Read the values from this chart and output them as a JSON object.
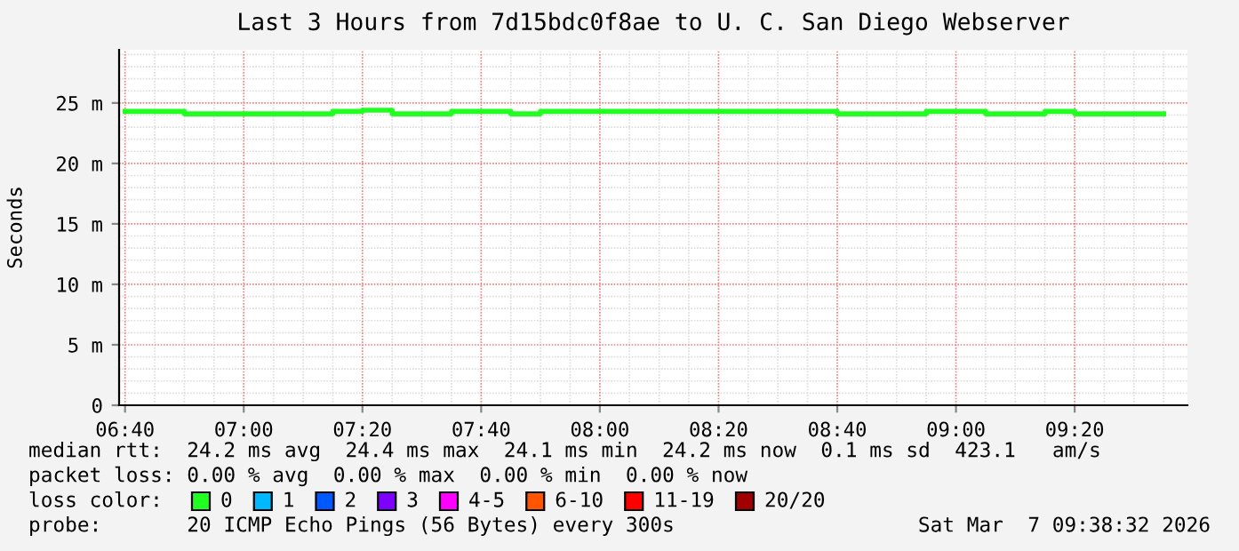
{
  "chart_data": {
    "type": "step",
    "title": "Last 3 Hours from 7d15bdc0f8ae to U. C. San Diego Webserver",
    "ylabel": "Seconds",
    "x": [
      6.6667,
      6.8333,
      7.25,
      7.3333,
      7.4167,
      7.5833,
      7.75,
      7.8333,
      8.6667,
      8.9167,
      9.0833,
      9.25,
      9.3333,
      9.5833
    ],
    "series": [
      {
        "name": "0",
        "color": "#20ff20",
        "values": [
          24.3,
          24.1,
          24.3,
          24.4,
          24.1,
          24.3,
          24.1,
          24.3,
          24.1,
          24.3,
          24.1,
          24.3,
          24.1,
          24.1
        ]
      },
      {
        "name": "1",
        "color": "#00b8ff",
        "values": [
          null,
          null,
          null,
          null,
          null,
          null,
          null,
          null,
          null,
          null,
          null,
          null,
          null,
          null
        ]
      },
      {
        "name": "2",
        "color": "#0059ff",
        "values": [
          null,
          null,
          null,
          null,
          null,
          null,
          null,
          null,
          null,
          null,
          null,
          null,
          null,
          null
        ]
      },
      {
        "name": "3",
        "color": "#7e00ff",
        "values": [
          null,
          null,
          null,
          null,
          null,
          null,
          null,
          null,
          null,
          null,
          null,
          null,
          null,
          null
        ]
      },
      {
        "name": "4-5",
        "color": "#ff00ff",
        "values": [
          null,
          null,
          null,
          null,
          null,
          null,
          null,
          null,
          null,
          null,
          null,
          null,
          null,
          null
        ]
      },
      {
        "name": "6-10",
        "color": "#ff5500",
        "values": [
          null,
          null,
          null,
          null,
          null,
          null,
          null,
          null,
          null,
          null,
          null,
          null,
          null,
          null
        ]
      },
      {
        "name": "11-19",
        "color": "#ff0000",
        "values": [
          null,
          null,
          null,
          null,
          null,
          null,
          null,
          null,
          null,
          null,
          null,
          null,
          null,
          null
        ]
      },
      {
        "name": "20/20",
        "color": "#a10000",
        "values": [
          null,
          null,
          null,
          null,
          null,
          null,
          null,
          null,
          null,
          null,
          null,
          null,
          null,
          null
        ]
      }
    ],
    "xlim": [
      6.65,
      9.65
    ],
    "xticks": [
      {
        "value": 6.6667,
        "label": "06:40"
      },
      {
        "value": 7.0,
        "label": "07:00"
      },
      {
        "value": 7.3333,
        "label": "07:20"
      },
      {
        "value": 7.6667,
        "label": "07:40"
      },
      {
        "value": 8.0,
        "label": "08:00"
      },
      {
        "value": 8.3333,
        "label": "08:20"
      },
      {
        "value": 8.6667,
        "label": "08:40"
      },
      {
        "value": 9.0,
        "label": "09:00"
      },
      {
        "value": 9.3333,
        "label": "09:20"
      }
    ],
    "ylim": [
      0,
      29.4
    ],
    "yticks": [
      0,
      {
        "value": 5,
        "label": "5 m"
      },
      {
        "value": 10,
        "label": "10 m"
      },
      {
        "value": 15,
        "label": "15 m"
      },
      {
        "value": 20,
        "label": "20 m"
      },
      {
        "value": 25,
        "label": "25 m"
      }
    ],
    "grid": true,
    "legend": "bottom",
    "legend_title": "loss color:",
    "annotations": [
      "median rtt:  24.2 ms avg  24.4 ms max  24.1 ms min  24.2 ms now  0.1 ms sd  423.1   am/s",
      "packet loss: 0.00 % avg  0.00 % max  0.00 % min  0.00 % now",
      "probe:       20 ICMP Echo Pings (56 Bytes) every 300s",
      "Sat Mar  7 09:38:32 2026"
    ]
  }
}
